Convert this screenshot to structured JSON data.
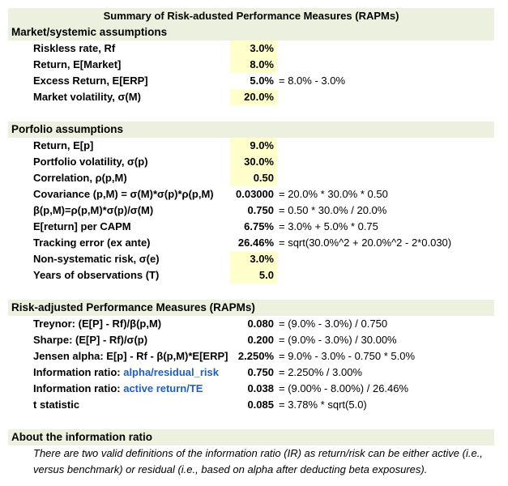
{
  "title": "Summary of Risk-adusted Performance Measures (RAPMs)",
  "market": {
    "header": "Market/systemic assumptions",
    "rows": [
      {
        "label": "Riskless rate, Rf",
        "value": "3.0%",
        "formula": ""
      },
      {
        "label": "Return, E[Market]",
        "value": "8.0%",
        "formula": ""
      },
      {
        "label": "Excess Return, E[ERP]",
        "value": "5.0%",
        "formula": "= 8.0% - 3.0%"
      },
      {
        "label": "Market volatility, σ(M)",
        "value": "20.0%",
        "formula": ""
      }
    ]
  },
  "portfolio": {
    "header": "Porfolio assumptions",
    "rows": [
      {
        "label": "Return, E[p]",
        "value": "9.0%",
        "formula": ""
      },
      {
        "label": "Portfolio volatility, σ(p)",
        "value": "30.0%",
        "formula": ""
      },
      {
        "label": "Correlation, ρ(p,M)",
        "value": "0.50",
        "formula": ""
      },
      {
        "label": "Covariance (p,M) = σ(M)*σ(p)*ρ(p,M)",
        "value": "0.03000",
        "formula": "= 20.0% * 30.0% * 0.50"
      },
      {
        "label": "β(p,M)=ρ(p,M)*σ(p)/σ(M)",
        "value": "0.750",
        "formula": "= 0.50 * 30.0% / 20.0%"
      },
      {
        "label": "E[return] per CAPM",
        "value": "6.75%",
        "formula": "= 3.0% + 5.0% * 0.75"
      },
      {
        "label": "Tracking error (ex ante)",
        "value": "26.46%",
        "formula": "= sqrt(30.0%^2 + 20.0%^2 - 2*0.030)"
      },
      {
        "label": "Non-systematic risk, σ(e)",
        "value": "3.0%",
        "formula": ""
      },
      {
        "label": "Years of observations (T)",
        "value": "5.0",
        "formula": ""
      }
    ]
  },
  "rapm": {
    "header": "Risk-adjusted Performance Measures (RAPMs)",
    "rows": [
      {
        "label": "Treynor: (E[P] - Rf)/β(p,M)",
        "value": "0.080",
        "formula": "= (9.0% - 3.0%)  /  0.750"
      },
      {
        "label": "Sharpe: (E[P] - Rf)/σ(p)",
        "value": "0.200",
        "formula": "= (9.0% - 3.0%)  /  30.00%"
      },
      {
        "label": "Jensen alpha: E[p] - Rf - β(p,M)*E[ERP]",
        "value": "2.250%",
        "formula": "= 9.0% - 3.0% -  0.750 * 5.0%"
      },
      {
        "label": "Information ratio: ",
        "label_blue": "alpha/residual_risk",
        "value": "0.750",
        "formula": "= 2.250% / 3.00%"
      },
      {
        "label": "Information ratio: ",
        "label_blue": "active return/TE",
        "value": "0.038",
        "formula": "= (9.00% - 8.00%) / 26.46%"
      },
      {
        "label": "t statistic",
        "value": "0.085",
        "formula": "= 3.78% * sqrt(5.0)"
      }
    ]
  },
  "about": {
    "header": "About the information ratio",
    "text": "There are two valid definitions of the information ratio (IR) as return/risk can be either active (i.e., versus benchmark) or residual (i.e., based on alpha after deducting beta exposures)."
  },
  "colors": {
    "header_bg": "#ebf1de",
    "input_bg": "#ffffcc",
    "link_blue": "#1f5fbf"
  }
}
